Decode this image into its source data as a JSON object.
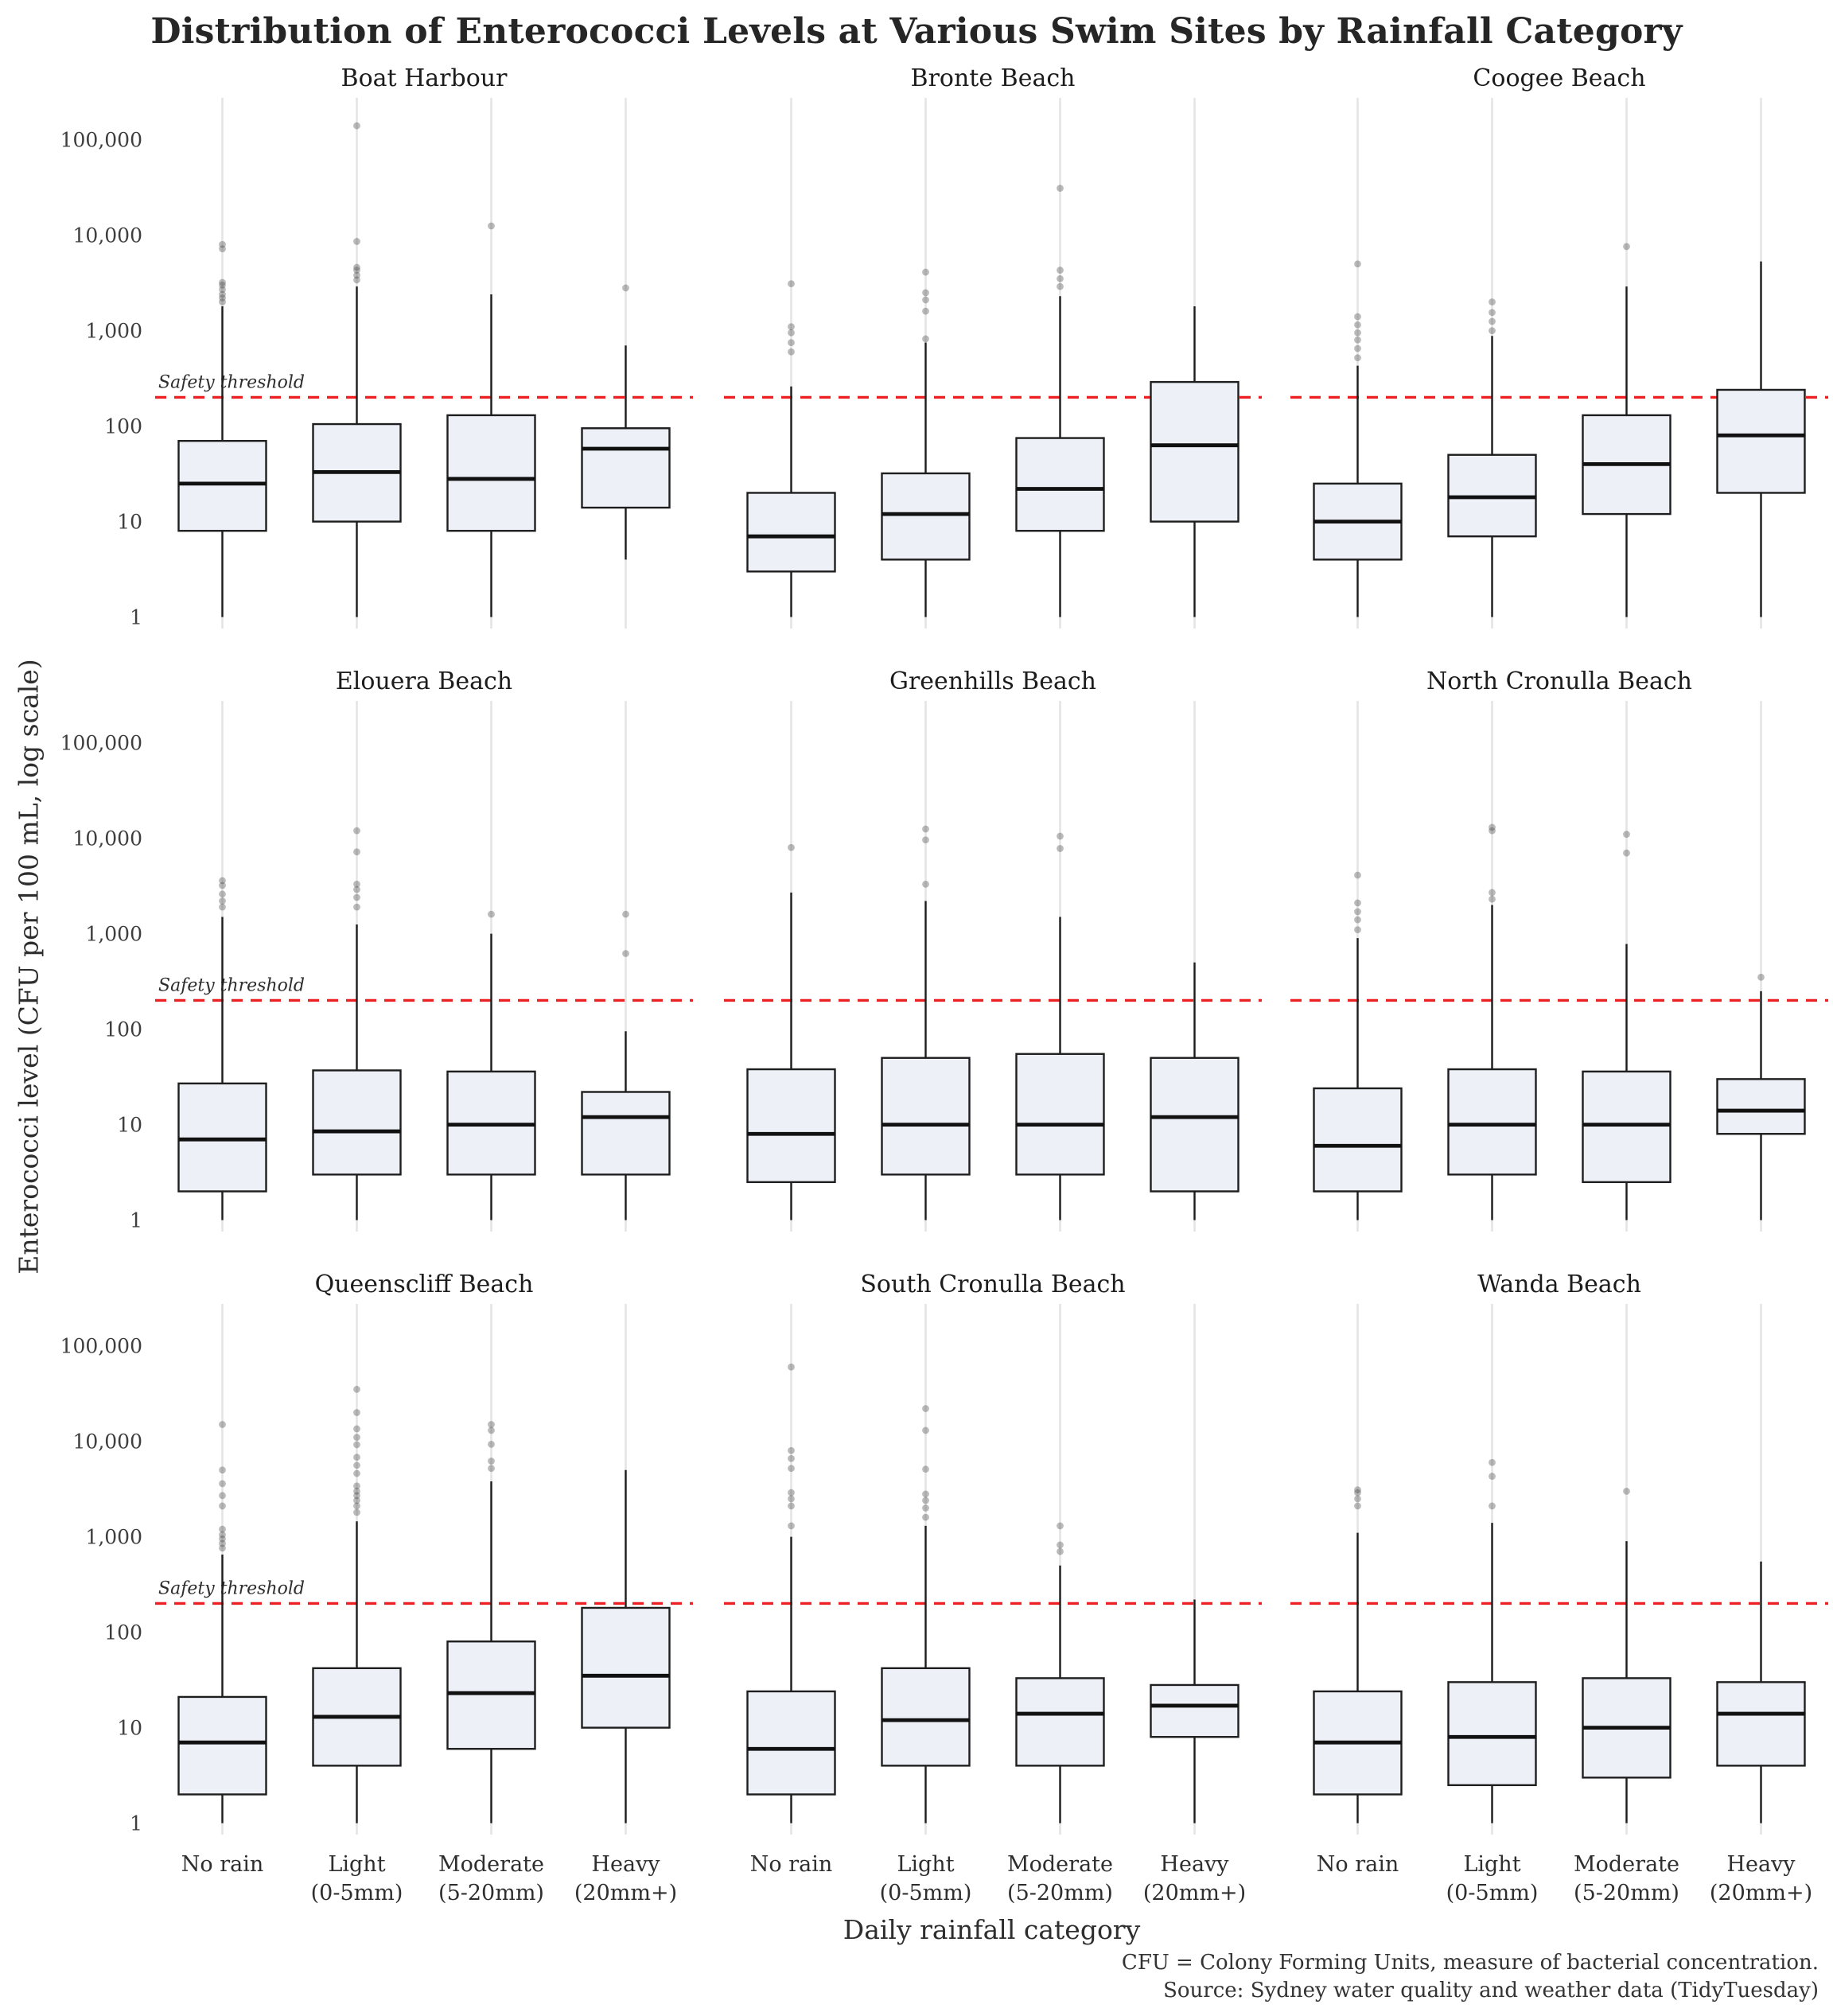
{
  "chart_data": {
    "type": "boxplot",
    "title": "Distribution of Enterococci Levels at Various Swim Sites by Rainfall Category",
    "xlabel": "Daily rainfall category",
    "ylabel": "Enterococci level (CFU per 100 mL, log scale)",
    "y_scale": "log10",
    "ylim": [
      1,
      200000
    ],
    "y_ticks": [
      1,
      10,
      100,
      1000,
      10000,
      100000
    ],
    "y_tick_labels": [
      "1",
      "10",
      "100",
      "1,000",
      "10,000",
      "100,000"
    ],
    "grid": "vertical-category-lines-only",
    "legend": "none",
    "facet_grid": "3x3",
    "box_fill": "#edf1f7",
    "box_stroke": "#1e1e1e",
    "outlier_color": "#4d4d4d",
    "threshold": {
      "value": 200,
      "label": "Safety threshold",
      "color": "#ed2124",
      "style": "dashed"
    },
    "categories": [
      [
        "No rain",
        ""
      ],
      [
        "Light",
        "(0-5mm)"
      ],
      [
        "Moderate",
        "(5-20mm)"
      ],
      [
        "Heavy",
        "(20mm+)"
      ]
    ],
    "facets": [
      {
        "site": "Boat Harbour",
        "boxes": [
          {
            "category": "No rain",
            "whisker_low": 1,
            "q1": 8,
            "median": 25,
            "q3": 70,
            "whisker_high": 1800,
            "outliers": [
              2000,
              2200,
              2400,
              2700,
              3000,
              3200,
              7200,
              8000
            ]
          },
          {
            "category": "Light (0-5mm)",
            "whisker_low": 1,
            "q1": 10,
            "median": 33,
            "q3": 105,
            "whisker_high": 2900,
            "outliers": [
              3400,
              3800,
              4300,
              4600,
              8600,
              140000
            ]
          },
          {
            "category": "Moderate (5-20mm)",
            "whisker_low": 1,
            "q1": 8,
            "median": 28,
            "q3": 130,
            "whisker_high": 2400,
            "outliers": [
              12500
            ]
          },
          {
            "category": "Heavy (20mm+)",
            "whisker_low": 4,
            "q1": 14,
            "median": 58,
            "q3": 95,
            "whisker_high": 700,
            "outliers": [
              2800
            ]
          }
        ]
      },
      {
        "site": "Bronte Beach",
        "boxes": [
          {
            "category": "No rain",
            "whisker_low": 1,
            "q1": 3,
            "median": 7,
            "q3": 20,
            "whisker_high": 260,
            "outliers": [
              600,
              750,
              950,
              1100,
              3100
            ]
          },
          {
            "category": "Light (0-5mm)",
            "whisker_low": 1,
            "q1": 4,
            "median": 12,
            "q3": 32,
            "whisker_high": 750,
            "outliers": [
              820,
              1600,
              2100,
              2500,
              4100
            ]
          },
          {
            "category": "Moderate (5-20mm)",
            "whisker_low": 1,
            "q1": 8,
            "median": 22,
            "q3": 75,
            "whisker_high": 2300,
            "outliers": [
              2900,
              3500,
              4300,
              31000
            ]
          },
          {
            "category": "Heavy (20mm+)",
            "whisker_low": 1,
            "q1": 10,
            "median": 63,
            "q3": 290,
            "whisker_high": 1800,
            "outliers": []
          }
        ]
      },
      {
        "site": "Coogee Beach",
        "boxes": [
          {
            "category": "No rain",
            "whisker_low": 1,
            "q1": 4,
            "median": 10,
            "q3": 25,
            "whisker_high": 430,
            "outliers": [
              520,
              650,
              800,
              950,
              1150,
              1400,
              5000
            ]
          },
          {
            "category": "Light (0-5mm)",
            "whisker_low": 1,
            "q1": 7,
            "median": 18,
            "q3": 50,
            "whisker_high": 880,
            "outliers": [
              1000,
              1250,
              1550,
              2000
            ]
          },
          {
            "category": "Moderate (5-20mm)",
            "whisker_low": 1,
            "q1": 12,
            "median": 40,
            "q3": 130,
            "whisker_high": 2900,
            "outliers": [
              7600
            ]
          },
          {
            "category": "Heavy (20mm+)",
            "whisker_low": 1,
            "q1": 20,
            "median": 80,
            "q3": 240,
            "whisker_high": 5300,
            "outliers": []
          }
        ]
      },
      {
        "site": "Elouera Beach",
        "boxes": [
          {
            "category": "No rain",
            "whisker_low": 1,
            "q1": 2,
            "median": 7,
            "q3": 27,
            "whisker_high": 1500,
            "outliers": [
              1900,
              2200,
              2600,
              3200,
              3600
            ]
          },
          {
            "category": "Light (0-5mm)",
            "whisker_low": 1,
            "q1": 3,
            "median": 8.5,
            "q3": 37,
            "whisker_high": 1250,
            "outliers": [
              1900,
              2400,
              2900,
              3300,
              7200,
              12000
            ]
          },
          {
            "category": "Moderate (5-20mm)",
            "whisker_low": 1,
            "q1": 3,
            "median": 10,
            "q3": 36,
            "whisker_high": 1000,
            "outliers": [
              1600
            ]
          },
          {
            "category": "Heavy (20mm+)",
            "whisker_low": 1,
            "q1": 3,
            "median": 12,
            "q3": 22,
            "whisker_high": 95,
            "outliers": [
              620,
              1600
            ]
          }
        ]
      },
      {
        "site": "Greenhills Beach",
        "boxes": [
          {
            "category": "No rain",
            "whisker_low": 1,
            "q1": 2.5,
            "median": 8,
            "q3": 38,
            "whisker_high": 2700,
            "outliers": [
              8000
            ]
          },
          {
            "category": "Light (0-5mm)",
            "whisker_low": 1,
            "q1": 3,
            "median": 10,
            "q3": 50,
            "whisker_high": 2200,
            "outliers": [
              3300,
              9600,
              12500
            ]
          },
          {
            "category": "Moderate (5-20mm)",
            "whisker_low": 1,
            "q1": 3,
            "median": 10,
            "q3": 55,
            "whisker_high": 1500,
            "outliers": [
              7800,
              10500
            ]
          },
          {
            "category": "Heavy (20mm+)",
            "whisker_low": 1,
            "q1": 2,
            "median": 12,
            "q3": 50,
            "whisker_high": 500,
            "outliers": []
          }
        ]
      },
      {
        "site": "North Cronulla Beach",
        "boxes": [
          {
            "category": "No rain",
            "whisker_low": 1,
            "q1": 2,
            "median": 6,
            "q3": 24,
            "whisker_high": 900,
            "outliers": [
              1100,
              1400,
              1700,
              2100,
              4100
            ]
          },
          {
            "category": "Light (0-5mm)",
            "whisker_low": 1,
            "q1": 3,
            "median": 10,
            "q3": 38,
            "whisker_high": 2000,
            "outliers": [
              2300,
              2700,
              12000,
              13000
            ]
          },
          {
            "category": "Moderate (5-20mm)",
            "whisker_low": 1,
            "q1": 2.5,
            "median": 10,
            "q3": 36,
            "whisker_high": 780,
            "outliers": [
              7000,
              11000
            ]
          },
          {
            "category": "Heavy (20mm+)",
            "whisker_low": 1,
            "q1": 8,
            "median": 14,
            "q3": 30,
            "whisker_high": 250,
            "outliers": [
              350
            ]
          }
        ]
      },
      {
        "site": "Queenscliff Beach",
        "boxes": [
          {
            "category": "No rain",
            "whisker_low": 1,
            "q1": 2,
            "median": 7,
            "q3": 21,
            "whisker_high": 650,
            "outliers": [
              760,
              850,
              950,
              1050,
              1200,
              2100,
              2700,
              3600,
              5000,
              15000
            ]
          },
          {
            "category": "Light (0-5mm)",
            "whisker_low": 1,
            "q1": 4,
            "median": 13,
            "q3": 42,
            "whisker_high": 1450,
            "outliers": [
              1800,
              2100,
              2400,
              2700,
              3000,
              3400,
              4600,
              5600,
              6800,
              9200,
              11000,
              13500,
              20000,
              35000
            ]
          },
          {
            "category": "Moderate (5-20mm)",
            "whisker_low": 1,
            "q1": 6,
            "median": 23,
            "q3": 80,
            "whisker_high": 3800,
            "outliers": [
              5200,
              6200,
              9300,
              13000,
              15000
            ]
          },
          {
            "category": "Heavy (20mm+)",
            "whisker_low": 1,
            "q1": 10,
            "median": 35,
            "q3": 180,
            "whisker_high": 5000,
            "outliers": []
          }
        ]
      },
      {
        "site": "South Cronulla Beach",
        "boxes": [
          {
            "category": "No rain",
            "whisker_low": 1,
            "q1": 2,
            "median": 6,
            "q3": 24,
            "whisker_high": 1000,
            "outliers": [
              1300,
              2100,
              2500,
              2900,
              5200,
              6600,
              8000,
              60000
            ]
          },
          {
            "category": "Light (0-5mm)",
            "whisker_low": 1,
            "q1": 4,
            "median": 12,
            "q3": 42,
            "whisker_high": 1300,
            "outliers": [
              1600,
              2000,
              2400,
              2800,
              5100,
              13000,
              22000
            ]
          },
          {
            "category": "Moderate (5-20mm)",
            "whisker_low": 1,
            "q1": 4,
            "median": 14,
            "q3": 33,
            "whisker_high": 500,
            "outliers": [
              700,
              820,
              1300
            ]
          },
          {
            "category": "Heavy (20mm+)",
            "whisker_low": 1,
            "q1": 8,
            "median": 17,
            "q3": 28,
            "whisker_high": 220,
            "outliers": []
          }
        ]
      },
      {
        "site": "Wanda Beach",
        "boxes": [
          {
            "category": "No rain",
            "whisker_low": 1,
            "q1": 2,
            "median": 7,
            "q3": 24,
            "whisker_high": 1100,
            "outliers": [
              2100,
              2500,
              2900,
              3100
            ]
          },
          {
            "category": "Light (0-5mm)",
            "whisker_low": 1,
            "q1": 2.5,
            "median": 8,
            "q3": 30,
            "whisker_high": 1400,
            "outliers": [
              2100,
              4300,
              6000
            ]
          },
          {
            "category": "Moderate (5-20mm)",
            "whisker_low": 1,
            "q1": 3,
            "median": 10,
            "q3": 33,
            "whisker_high": 900,
            "outliers": [
              3000
            ]
          },
          {
            "category": "Heavy (20mm+)",
            "whisker_low": 1,
            "q1": 4,
            "median": 14,
            "q3": 30,
            "whisker_high": 550,
            "outliers": []
          }
        ]
      }
    ],
    "caption": [
      "CFU = Colony Forming Units, measure of bacterial concentration.",
      "Source: Sydney water quality and weather data (TidyTuesday)"
    ]
  }
}
